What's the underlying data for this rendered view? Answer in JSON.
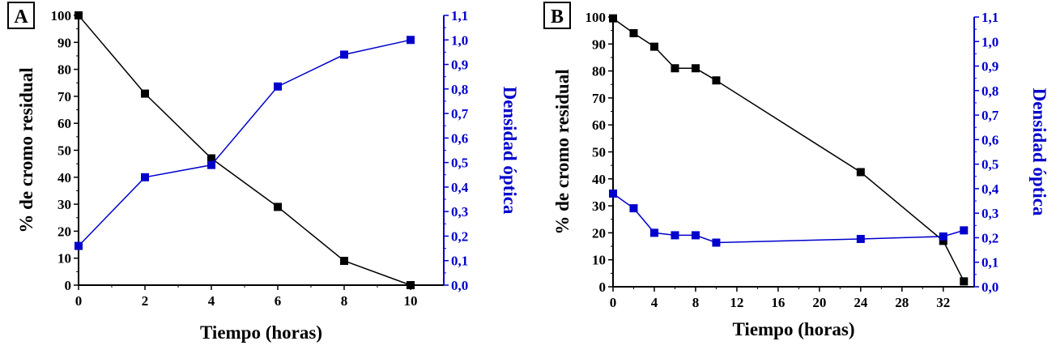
{
  "colors": {
    "black_series": "#000000",
    "blue_series": "#0000CC"
  },
  "chart_data": [
    {
      "type": "line",
      "panel_label": "A",
      "xlabel": "Tiempo (horas)",
      "ylabel_left": "% de cromo residual",
      "ylabel_right": "Densidad óptica",
      "xlim": [
        0,
        11
      ],
      "ylim_left": [
        0,
        100
      ],
      "ylim_right": [
        0,
        1.1
      ],
      "x_ticks": [
        0,
        2,
        4,
        6,
        8,
        10
      ],
      "x_tick_labels": [
        "0",
        "2",
        "4",
        "6",
        "8",
        "10"
      ],
      "y_left_ticks": [
        0,
        10,
        20,
        30,
        40,
        50,
        60,
        70,
        80,
        90,
        100
      ],
      "y_left_tick_labels": [
        "0",
        "10",
        "20",
        "30",
        "40",
        "50",
        "60",
        "70",
        "80",
        "90",
        "100"
      ],
      "y_right_ticks": [
        0,
        0.1,
        0.2,
        0.3,
        0.4,
        0.5,
        0.6,
        0.7,
        0.8,
        0.9,
        1.0,
        1.1
      ],
      "y_right_tick_labels": [
        "0,0",
        "0,1",
        "0,2",
        "0,3",
        "0,4",
        "0,5",
        "0,6",
        "0,7",
        "0,8",
        "0,9",
        "1,0",
        "1,1"
      ],
      "series": [
        {
          "name": "% de cromo residual",
          "axis": "left",
          "color": "#000000",
          "x": [
            0,
            2,
            4,
            6,
            8,
            10
          ],
          "y": [
            100,
            71,
            47,
            29,
            9,
            0
          ]
        },
        {
          "name": "Densidad óptica",
          "axis": "right",
          "color": "#0000CC",
          "x": [
            0,
            2,
            4,
            6,
            8,
            10
          ],
          "y": [
            0.16,
            0.44,
            0.49,
            0.81,
            0.94,
            1.0
          ]
        }
      ]
    },
    {
      "type": "line",
      "panel_label": "B",
      "xlabel": "Tiempo (horas)",
      "ylabel_left": "% de cromo residual",
      "ylabel_right": "Densidad óptica",
      "xlim": [
        0,
        35
      ],
      "ylim_left": [
        0,
        100
      ],
      "ylim_right": [
        0,
        1.1
      ],
      "x_ticks": [
        0,
        4,
        8,
        12,
        16,
        20,
        24,
        28,
        32
      ],
      "x_tick_labels": [
        "0",
        "4",
        "8",
        "12",
        "16",
        "20",
        "24",
        "28",
        "32"
      ],
      "y_left_ticks": [
        0,
        10,
        20,
        30,
        40,
        50,
        60,
        70,
        80,
        90,
        100
      ],
      "y_left_tick_labels": [
        "0",
        "10",
        "20",
        "30",
        "40",
        "50",
        "60",
        "70",
        "80",
        "90",
        "100"
      ],
      "y_right_ticks": [
        0,
        0.1,
        0.2,
        0.3,
        0.4,
        0.5,
        0.6,
        0.7,
        0.8,
        0.9,
        1.0,
        1.1
      ],
      "y_right_tick_labels": [
        "0,0",
        "0,1",
        "0,2",
        "0,3",
        "0,4",
        "0,5",
        "0,6",
        "0,7",
        "0,8",
        "0,9",
        "1,0",
        "1,1"
      ],
      "series": [
        {
          "name": "% de cromo residual",
          "axis": "left",
          "color": "#000000",
          "x": [
            0,
            2,
            4,
            6,
            8,
            10,
            24,
            32,
            34
          ],
          "y": [
            99.5,
            94,
            89,
            81,
            81,
            76.5,
            42.5,
            17,
            2
          ]
        },
        {
          "name": "Densidad óptica",
          "axis": "right",
          "color": "#0000CC",
          "x": [
            0,
            2,
            4,
            6,
            8,
            10,
            24,
            32,
            34
          ],
          "y": [
            0.38,
            0.32,
            0.22,
            0.21,
            0.21,
            0.18,
            0.195,
            0.205,
            0.23
          ]
        }
      ]
    }
  ]
}
